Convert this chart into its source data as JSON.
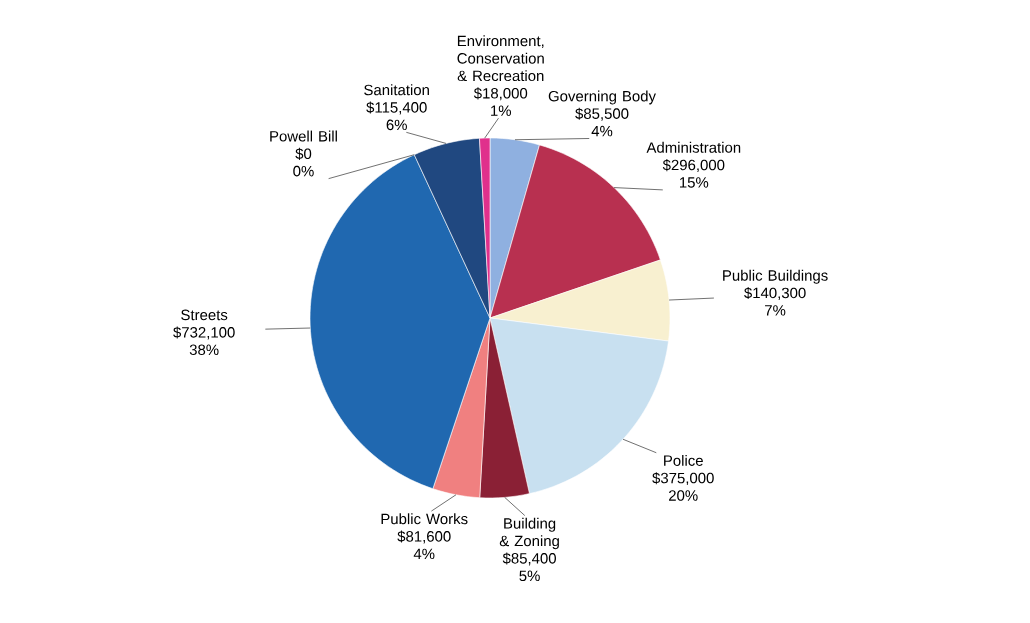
{
  "chart_data": {
    "type": "pie",
    "categories": [
      "Governing Body",
      "Administration",
      "Public Buildings",
      "Police",
      "Building & Zoning",
      "Public Works",
      "Streets",
      "Powell Bill",
      "Sanitation",
      "Environment, Conservation & Recreation"
    ],
    "values": [
      85500,
      296000,
      140300,
      375000,
      85400,
      81600,
      732100,
      0,
      115400,
      18000
    ],
    "value_labels": [
      "$85,500 4%",
      "$296,000 15%",
      "$140,300 7%",
      "$375,000 20%",
      "$85,400 5%",
      "$81,600 4%",
      "$732,100 38%",
      "$0 0%",
      "$115,400 6%",
      "$18,000 1%"
    ],
    "colors": [
      "#8fb0e0",
      "#b83050",
      "#f8f0d0",
      "#c8e0f0",
      "#8a2035",
      "#f08080",
      "#2068b0",
      "#3060a0",
      "#204880",
      "#e0308c"
    ]
  }
}
